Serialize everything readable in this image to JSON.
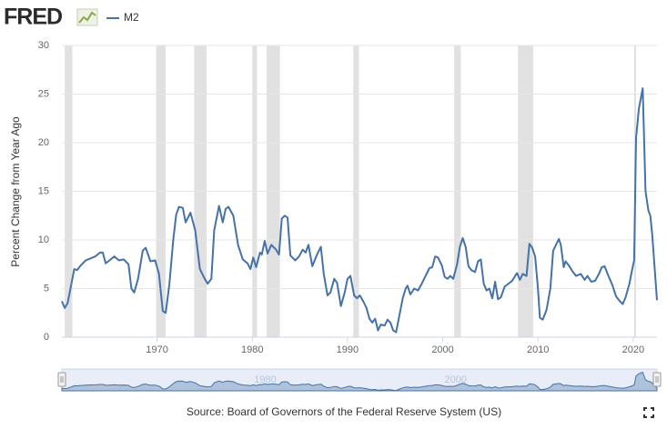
{
  "chart_data": {
    "type": "line",
    "brand": "FRED",
    "ylabel": "Percent Change from Year Ago",
    "source": "Source: Board of Governors of the Federal Reserve System (US)",
    "xlim": [
      1960,
      2022.5
    ],
    "xticks": [
      1970,
      1980,
      1990,
      2000,
      2010,
      2020
    ],
    "ylim": [
      0,
      30
    ],
    "yticks": [
      0,
      5,
      10,
      15,
      20,
      25,
      30
    ],
    "grid": true,
    "navigator_xticks": [
      1980,
      2000
    ],
    "recessions": [
      [
        1960.3,
        1961.1
      ],
      [
        1969.9,
        1970.9
      ],
      [
        1973.9,
        1975.2
      ],
      [
        1980.0,
        1980.5
      ],
      [
        1981.5,
        1982.9
      ],
      [
        1990.6,
        1991.2
      ],
      [
        2001.2,
        2001.9
      ],
      [
        2007.9,
        2009.5
      ],
      [
        2020.1,
        2020.3
      ]
    ],
    "x": [
      1960.0,
      1960.3,
      1960.6,
      1961.0,
      1961.3,
      1961.6,
      1962.0,
      1962.5,
      1963.0,
      1963.5,
      1964.0,
      1964.3,
      1964.6,
      1965.0,
      1965.5,
      1966.0,
      1966.5,
      1967.0,
      1967.3,
      1967.6,
      1968.0,
      1968.5,
      1968.8,
      1969.3,
      1969.8,
      1970.2,
      1970.6,
      1970.9,
      1971.3,
      1971.7,
      1972.0,
      1972.3,
      1972.7,
      1973.0,
      1973.5,
      1974.0,
      1974.5,
      1975.0,
      1975.3,
      1975.7,
      1976.0,
      1976.5,
      1976.9,
      1977.2,
      1977.5,
      1978.0,
      1978.5,
      1979.0,
      1979.5,
      1979.8,
      1980.1,
      1980.4,
      1980.8,
      1981.0,
      1981.3,
      1981.6,
      1982.0,
      1982.5,
      1982.8,
      1983.1,
      1983.4,
      1983.7,
      1984.0,
      1984.5,
      1984.9,
      1985.3,
      1985.6,
      1985.9,
      1986.3,
      1986.8,
      1987.2,
      1987.5,
      1987.9,
      1988.2,
      1988.6,
      1988.9,
      1989.3,
      1989.7,
      1990.0,
      1990.3,
      1990.7,
      1991.0,
      1991.3,
      1991.7,
      1992.0,
      1992.3,
      1992.6,
      1992.9,
      1993.2,
      1993.5,
      1993.9,
      1994.2,
      1994.5,
      1994.8,
      1995.1,
      1995.4,
      1995.8,
      1996.1,
      1996.3,
      1996.6,
      1997.0,
      1997.4,
      1997.8,
      1998.2,
      1998.6,
      1998.9,
      1999.2,
      1999.5,
      1999.9,
      2000.2,
      2000.5,
      2000.8,
      2001.1,
      2001.5,
      2001.8,
      2002.1,
      2002.4,
      2002.7,
      2003.0,
      2003.4,
      2003.7,
      2004.0,
      2004.3,
      2004.6,
      2004.9,
      2005.2,
      2005.5,
      2005.8,
      2006.1,
      2006.5,
      2006.9,
      2007.3,
      2007.6,
      2007.8,
      2008.1,
      2008.4,
      2008.8,
      2009.1,
      2009.4,
      2009.7,
      2010.0,
      2010.2,
      2010.5,
      2010.9,
      2011.3,
      2011.6,
      2012.0,
      2012.2,
      2012.4,
      2012.7,
      2012.9,
      2013.3,
      2013.6,
      2014.0,
      2014.5,
      2014.9,
      2015.2,
      2015.6,
      2016.0,
      2016.4,
      2016.7,
      2017.0,
      2017.4,
      2017.8,
      2018.2,
      2018.6,
      2018.9,
      2019.2,
      2019.6,
      2019.9,
      2020.1,
      2020.3,
      2020.6,
      2021.0,
      2021.3,
      2021.6,
      2021.8,
      2022.0,
      2022.3,
      2022.5
    ],
    "series": [
      {
        "name": "M2",
        "color": "#4572a7",
        "values": [
          3.7,
          3.0,
          3.5,
          5.5,
          7.0,
          6.9,
          7.4,
          7.9,
          8.1,
          8.3,
          8.7,
          8.7,
          7.6,
          7.9,
          8.3,
          7.9,
          8.0,
          7.5,
          5.0,
          4.6,
          6.0,
          8.9,
          9.2,
          7.8,
          7.9,
          6.5,
          2.7,
          2.5,
          5.5,
          10.0,
          12.6,
          13.4,
          13.3,
          11.8,
          12.8,
          11.0,
          7.0,
          6.0,
          5.5,
          6.0,
          11.0,
          13.5,
          11.8,
          13.2,
          13.4,
          12.5,
          9.5,
          8.0,
          7.6,
          7.0,
          8.2,
          7.2,
          8.7,
          8.5,
          9.9,
          8.6,
          9.5,
          9.0,
          8.5,
          12.2,
          12.5,
          12.3,
          8.4,
          7.9,
          8.3,
          9.0,
          8.7,
          9.5,
          7.3,
          8.5,
          9.3,
          6.5,
          4.3,
          4.6,
          6.0,
          5.6,
          3.2,
          4.6,
          6.0,
          6.3,
          4.3,
          4.0,
          4.3,
          3.6,
          3.0,
          1.9,
          1.5,
          1.9,
          0.7,
          1.3,
          1.2,
          1.8,
          1.5,
          0.7,
          0.5,
          2.0,
          4.0,
          5.0,
          5.3,
          4.4,
          5.0,
          4.8,
          5.5,
          6.3,
          7.1,
          7.2,
          8.3,
          8.2,
          7.4,
          6.2,
          6.0,
          6.3,
          6.0,
          7.5,
          9.3,
          10.2,
          9.3,
          7.3,
          6.9,
          6.7,
          7.8,
          8.0,
          5.5,
          4.8,
          5.0,
          4.0,
          5.7,
          3.9,
          4.1,
          5.2,
          5.5,
          5.8,
          6.3,
          6.6,
          5.9,
          6.5,
          6.3,
          9.6,
          9.2,
          8.3,
          5.0,
          2.0,
          1.8,
          2.8,
          5.0,
          8.9,
          9.7,
          10.1,
          9.5,
          7.2,
          7.8,
          7.3,
          6.8,
          6.3,
          6.5,
          5.9,
          6.3,
          5.7,
          5.8,
          6.5,
          7.2,
          7.3,
          6.3,
          5.4,
          4.2,
          3.7,
          3.4,
          4.1,
          5.5,
          7.0,
          7.9,
          20.5,
          23.5,
          25.6,
          15.0,
          13.0,
          12.5,
          10.5,
          6.5,
          3.8
        ]
      }
    ]
  }
}
